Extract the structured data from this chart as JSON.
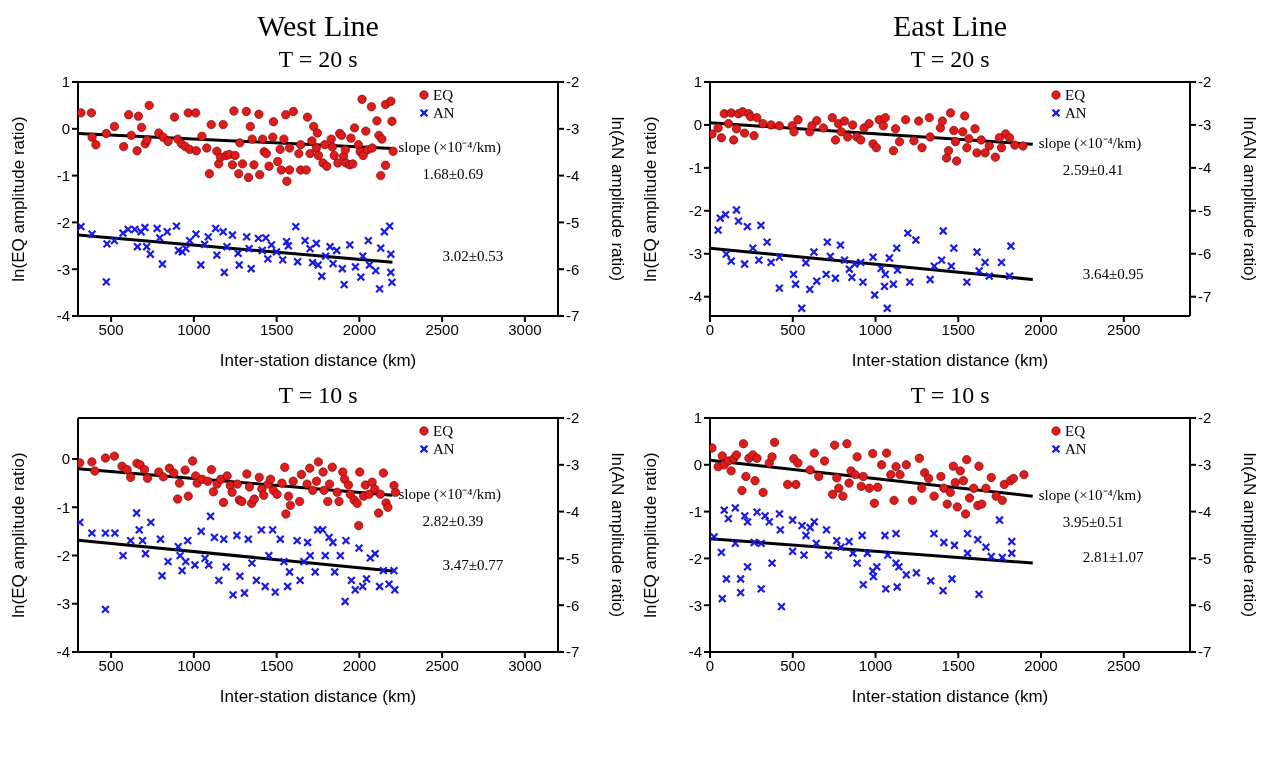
{
  "chart_data": [
    {
      "type": "scatter",
      "title": "West Line",
      "subtitle": "T = 20 s",
      "xlabel": "Inter-station distance (km)",
      "ylabel": "ln(EQ amplitude ratio)",
      "y2label": "ln(AN amplitude ratio)",
      "xlim": [
        300,
        3200
      ],
      "xticks": [
        500,
        1000,
        1500,
        2000,
        2500,
        3000
      ],
      "ylim": [
        -4,
        1
      ],
      "yticks": [
        -4,
        -3,
        -2,
        -1,
        0,
        1
      ],
      "y2lim": [
        -7,
        -2
      ],
      "y2ticks": [
        -7,
        -6,
        -5,
        -4,
        -3,
        -2
      ],
      "legend": "top right",
      "grid": false,
      "annotations": [
        "slope (×10⁻⁴/km)",
        "1.68±0.69",
        "3.02±0.53"
      ],
      "series": [
        {
          "name": "EQ",
          "color": "#e01b1b",
          "marker": "circle",
          "x": [
            318,
            381,
            385,
            408,
            471,
            520,
            576,
            606,
            622,
            657,
            665,
            684,
            706,
            717,
            730,
            788,
            815,
            844,
            883,
            903,
            925,
            948,
            966,
            975,
            1011,
            1015,
            1049,
            1078,
            1094,
            1105,
            1139,
            1150,
            1161,
            1177,
            1195,
            1214,
            1233,
            1242,
            1249,
            1271,
            1278,
            1294,
            1317,
            1330,
            1341,
            1352,
            1363,
            1393,
            1398,
            1416,
            1425,
            1438,
            1454,
            1477,
            1481,
            1506,
            1521,
            1528,
            1544,
            1555,
            1562,
            1578,
            1578,
            1601,
            1634,
            1645,
            1645,
            1679,
            1686,
            1702,
            1713,
            1724,
            1740,
            1746,
            1753,
            1780,
            1791,
            1803,
            1830,
            1837,
            1848,
            1870,
            1881,
            1892,
            1904,
            1915,
            1919,
            1942,
            1949,
            1960,
            1971,
            1994,
            2005,
            2016,
            2023,
            2039,
            2050,
            2073,
            2077,
            2106,
            2118,
            2129,
            2136,
            2158,
            2158,
            2190,
            2197,
            2204
          ],
          "values": [
            0.34,
            0.34,
            -0.18,
            -0.34,
            -0.1,
            0.05,
            -0.38,
            0.3,
            -0.14,
            -0.47,
            0.27,
            0.03,
            -0.32,
            -0.24,
            0.5,
            -0.09,
            -0.18,
            -0.27,
            0.25,
            -0.22,
            -0.32,
            -0.38,
            0.34,
            -0.44,
            0.34,
            -0.47,
            -0.16,
            -0.41,
            -0.96,
            0.09,
            -0.48,
            -0.75,
            -0.61,
            0.09,
            -0.57,
            -0.55,
            -0.77,
            0.38,
            -0.57,
            -0.96,
            -0.3,
            -0.75,
            0.37,
            -1.04,
            0.05,
            -0.22,
            -0.77,
            0.31,
            -0.98,
            -0.22,
            -0.49,
            -0.53,
            -0.8,
            -0.18,
            0.15,
            -0.7,
            -0.44,
            -0.88,
            -0.22,
            0.3,
            -1.12,
            -0.88,
            -0.41,
            0.37,
            -0.53,
            -0.34,
            -0.88,
            -0.88,
            0.25,
            -0.53,
            -0.26,
            0.05,
            -0.41,
            -0.09,
            -0.57,
            -0.73,
            -0.34,
            -0.8,
            -0.22,
            -0.39,
            -0.57,
            -0.73,
            -0.1,
            -0.14,
            -0.59,
            -0.45,
            -0.73,
            -0.77,
            -0.2,
            -0.75,
            0.02,
            -0.34,
            -0.49,
            0.63,
            -0.57,
            -0.05,
            -0.45,
            0.47,
            -0.41,
            0.17,
            -0.14,
            -1.0,
            -0.22,
            -0.78,
            0.52,
            0.59,
            0.16,
            -0.48
          ]
        },
        {
          "name": "AN",
          "color": "#1a1ae6",
          "marker": "cross",
          "axis": "y2",
          "x": [
            318,
            385,
            471,
            475,
            520,
            572,
            603,
            643,
            659,
            681,
            704,
            715,
            737,
            778,
            794,
            810,
            839,
            895,
            907,
            930,
            952,
            975,
            1013,
            1042,
            1065,
            1087,
            1132,
            1139,
            1177,
            1184,
            1200,
            1233,
            1267,
            1274,
            1319,
            1334,
            1346,
            1390,
            1413,
            1435,
            1447,
            1469,
            1499,
            1537,
            1560,
            1571,
            1616,
            1627,
            1672,
            1702,
            1717,
            1740,
            1751,
            1773,
            1796,
            1823,
            1841,
            1863,
            1897,
            1908,
            1942,
            1976,
            2009,
            2021,
            2054,
            2061,
            2099,
            2122,
            2129,
            2151,
            2183,
            2190,
            2190,
            2197
          ],
          "values": [
            -5.09,
            -5.25,
            -6.27,
            -5.46,
            -5.39,
            -5.23,
            -5.15,
            -5.15,
            -5.52,
            -5.2,
            -5.11,
            -5.52,
            -5.68,
            -5.13,
            -5.33,
            -5.89,
            -5.2,
            -5.08,
            -5.6,
            -5.63,
            -5.56,
            -5.39,
            -5.25,
            -5.91,
            -5.47,
            -5.31,
            -5.13,
            -5.7,
            -5.2,
            -6.07,
            -5.52,
            -5.27,
            -5.66,
            -5.91,
            -5.31,
            -5.56,
            -5.99,
            -5.34,
            -5.6,
            -5.33,
            -5.78,
            -5.48,
            -5.63,
            -5.8,
            -5.41,
            -5.5,
            -5.09,
            -5.84,
            -5.39,
            -5.56,
            -5.86,
            -5.45,
            -5.91,
            -6.15,
            -5.72,
            -5.52,
            -5.88,
            -5.6,
            -5.99,
            -6.33,
            -5.48,
            -5.95,
            -6.17,
            -5.72,
            -5.39,
            -5.91,
            -6.03,
            -6.42,
            -5.55,
            -5.2,
            -5.08,
            -5.68,
            -6.07,
            -6.28
          ]
        },
        {
          "type": "line",
          "color": "#000000",
          "x": [
            300,
            2200
          ],
          "values": [
            -0.1,
            -0.42
          ]
        },
        {
          "type": "line",
          "color": "#000000",
          "axis": "y2",
          "x": [
            300,
            2200
          ],
          "values": [
            -5.27,
            -5.85
          ]
        }
      ]
    },
    {
      "type": "scatter",
      "title": "East Line",
      "subtitle": "T = 20 s",
      "xlabel": "Inter-station distance (km)",
      "ylabel": "ln(EQ amplitude ratio)",
      "y2label": "ln(AN amplitude ratio)",
      "xlim": [
        0,
        2900
      ],
      "xticks": [
        0,
        500,
        1000,
        1500,
        2000,
        2500
      ],
      "ylim": [
        -4.45,
        1
      ],
      "yticks": [
        -4,
        -3,
        -2,
        -1,
        0,
        1
      ],
      "y2lim": [
        -7.45,
        -2
      ],
      "y2ticks": [
        -7,
        -6,
        -5,
        -4,
        -3,
        -2
      ],
      "legend": "top right",
      "grid": false,
      "annotations": [
        "slope (×10⁻⁴/km)",
        "2.59±0.41",
        "3.64±0.95"
      ],
      "series": [
        {
          "name": "EQ",
          "color": "#e01b1b",
          "marker": "circle",
          "x": [
            12,
            49,
            69,
            86,
            111,
            128,
            143,
            160,
            172,
            197,
            209,
            234,
            246,
            266,
            283,
            320,
            369,
            419,
            497,
            507,
            532,
            603,
            616,
            645,
            685,
            739,
            758,
            776,
            793,
            813,
            832,
            862,
            887,
            911,
            931,
            961,
            985,
            1005,
            1022,
            1047,
            1059,
            1108,
            1121,
            1145,
            1182,
            1232,
            1261,
            1281,
            1325,
            1330,
            1392,
            1404,
            1429,
            1441,
            1453,
            1473,
            1483,
            1490,
            1527,
            1539,
            1552,
            1564,
            1601,
            1613,
            1638,
            1662,
            1687,
            1724,
            1748,
            1761,
            1786,
            1810,
            1842,
            1891
          ],
          "values": [
            -0.21,
            -0.07,
            -0.3,
            0.26,
            0.03,
            0.28,
            -0.35,
            -0.09,
            0.26,
            0.31,
            -0.19,
            0.26,
            0.19,
            -0.25,
            0.17,
            0.03,
            0,
            -0.02,
            -0.02,
            -0.16,
            0.12,
            -0.16,
            -0.02,
            0.1,
            -0.07,
            0.17,
            -0.35,
            0.03,
            -0.16,
            0.09,
            -0.28,
            0,
            -0.28,
            -0.35,
            -0.07,
            0.03,
            -0.44,
            -0.53,
            0.12,
            -0.02,
            0.17,
            -0.6,
            -0.09,
            -0.39,
            0.12,
            -0.37,
            0.09,
            -0.53,
            0.17,
            -0.28,
            -0.07,
            0.09,
            -0.77,
            -0.6,
            0.28,
            -0.13,
            -0.39,
            -0.84,
            -0.16,
            0.21,
            -0.53,
            -0.32,
            -0.09,
            -0.65,
            -0.35,
            -0.65,
            -0.49,
            -0.75,
            -0.3,
            -0.53,
            -0.21,
            -0.3,
            -0.47,
            -0.49
          ]
        },
        {
          "name": "AN",
          "color": "#1a1ae6",
          "marker": "cross",
          "axis": "y2",
          "x": [
            49,
            62,
            94,
            98,
            128,
            160,
            172,
            209,
            226,
            259,
            295,
            308,
            345,
            369,
            419,
            419,
            505,
            517,
            554,
            579,
            603,
            628,
            645,
            702,
            709,
            727,
            758,
            788,
            813,
            842,
            857,
            874,
            911,
            924,
            985,
            995,
            1034,
            1054,
            1059,
            1071,
            1084,
            1108,
            1128,
            1133,
            1195,
            1207,
            1244,
            1330,
            1355,
            1399,
            1409,
            1458,
            1473,
            1552,
            1613,
            1626,
            1662,
            1687,
            1761,
            1810,
            1818
          ],
          "values": [
            -5.45,
            -5.17,
            -5.09,
            -6.01,
            -6.17,
            -4.98,
            -5.24,
            -6.24,
            -5.37,
            -5.87,
            -6.15,
            -5.34,
            -5.73,
            -6.2,
            -6.08,
            -6.8,
            -6.48,
            -6.71,
            -7.27,
            -6.21,
            -6.83,
            -5.96,
            -6.64,
            -6.48,
            -5.73,
            -6.06,
            -6.57,
            -5.8,
            -6.15,
            -6.36,
            -6.55,
            -6.24,
            -6.2,
            -6.66,
            -6.08,
            -6.96,
            -6.34,
            -6.76,
            -6.48,
            -7.27,
            -6.1,
            -6.71,
            -5.87,
            -6.38,
            -5.52,
            -6.66,
            -5.68,
            -6.6,
            -6.29,
            -6.15,
            -5.47,
            -6.29,
            -5.87,
            -6.66,
            -5.96,
            -6.4,
            -6.2,
            -6.52,
            -6.2,
            -6.52,
            -5.82
          ]
        },
        {
          "type": "line",
          "color": "#000000",
          "x": [
            0,
            1950
          ],
          "values": [
            0.05,
            -0.45
          ]
        },
        {
          "type": "line",
          "color": "#000000",
          "axis": "y2",
          "x": [
            0,
            1950
          ],
          "values": [
            -5.87,
            -6.6
          ]
        }
      ]
    },
    {
      "type": "scatter",
      "title": "T = 10 s",
      "xlabel": "Inter-station distance (km)",
      "ylabel": "ln(EQ amplitude ratio)",
      "y2label": "ln(AN amplitude ratio)",
      "xlim": [
        300,
        3200
      ],
      "xticks": [
        500,
        1000,
        1500,
        2000,
        2500,
        3000
      ],
      "ylim": [
        -4,
        0.85
      ],
      "yticks": [
        -4,
        -3,
        -2,
        -1,
        0
      ],
      "y2lim": [
        -7,
        -2
      ],
      "y2ticks": [
        -7,
        -6,
        -5,
        -4,
        -3,
        -2
      ],
      "legend": "top right",
      "grid": false,
      "annotations": [
        "slope (×10⁻⁴/km)",
        "2.82±0.39",
        "3.47±0.77"
      ],
      "series": [
        {
          "name": "EQ",
          "color": "#e01b1b",
          "marker": "circle",
          "x": [
            311,
            384,
            402,
            466,
            520,
            566,
            597,
            618,
            656,
            675,
            702,
            720,
            788,
            815,
            852,
            879,
            902,
            913,
            947,
            966,
            993,
            1011,
            1020,
            1050,
            1084,
            1106,
            1118,
            1140,
            1163,
            1179,
            1201,
            1220,
            1231,
            1263,
            1274,
            1290,
            1320,
            1336,
            1349,
            1365,
            1395,
            1411,
            1422,
            1449,
            1463,
            1480,
            1502,
            1532,
            1549,
            1556,
            1572,
            1583,
            1600,
            1639,
            1650,
            1684,
            1700,
            1718,
            1741,
            1752,
            1781,
            1786,
            1809,
            1820,
            1836,
            1866,
            1877,
            1900,
            1911,
            1934,
            1945,
            1968,
            1987,
            1996,
            2002,
            2025,
            2036,
            2059,
            2077,
            2093,
            2116,
            2127,
            2145,
            2161,
            2172,
            2209,
            2218
          ],
          "values": [
            -0.08,
            -0.06,
            -0.25,
            0.02,
            0.06,
            -0.15,
            -0.22,
            -0.38,
            -0.09,
            -0.12,
            -0.22,
            -0.4,
            -0.27,
            -0.37,
            -0.19,
            -0.29,
            -0.83,
            -0.5,
            -0.23,
            -0.77,
            -0.04,
            -0.35,
            -0.5,
            -0.42,
            -0.46,
            -0.22,
            -0.68,
            -0.52,
            -0.42,
            -0.9,
            -0.35,
            -0.55,
            -0.69,
            -0.52,
            -0.85,
            -0.88,
            -0.31,
            -0.58,
            -0.92,
            -0.83,
            -0.38,
            -0.62,
            -0.75,
            -0.52,
            -0.42,
            -0.65,
            -0.73,
            -0.5,
            -0.17,
            -1.14,
            -0.77,
            -0.96,
            -0.46,
            -0.88,
            -0.32,
            -0.52,
            -0.19,
            -0.65,
            -0.46,
            -0.06,
            -0.27,
            -0.65,
            -0.88,
            -0.52,
            -0.17,
            -0.69,
            -0.88,
            -0.27,
            -0.42,
            -0.54,
            -0.73,
            -0.85,
            -0.92,
            -1.38,
            -0.27,
            -0.77,
            -0.54,
            -0.73,
            -0.48,
            -0.62,
            -1.12,
            -0.73,
            -0.29,
            -0.91,
            -1.0,
            -0.55,
            -0.69
          ]
        },
        {
          "name": "AN",
          "color": "#1a1ae6",
          "marker": "cross",
          "axis": "y2",
          "x": [
            311,
            384,
            466,
            466,
            523,
            572,
            618,
            654,
            670,
            690,
            708,
            740,
            798,
            808,
            844,
            906,
            917,
            929,
            951,
            963,
            1006,
            1044,
            1067,
            1090,
            1101,
            1124,
            1151,
            1181,
            1196,
            1237,
            1260,
            1278,
            1306,
            1329,
            1351,
            1378,
            1408,
            1431,
            1453,
            1476,
            1492,
            1522,
            1544,
            1567,
            1578,
            1624,
            1642,
            1665,
            1687,
            1703,
            1733,
            1748,
            1778,
            1794,
            1817,
            1840,
            1851,
            1885,
            1914,
            1919,
            1952,
            1975,
            1998,
            2020,
            2043,
            2066,
            2095,
            2122,
            2145,
            2179,
            2209,
            2214
          ],
          "values": [
            -4.23,
            -4.46,
            -4.46,
            -6.09,
            -4.46,
            -4.94,
            -4.62,
            -4.03,
            -4.39,
            -4.62,
            -4.9,
            -4.23,
            -4.59,
            -5.37,
            -5.07,
            -4.75,
            -4.94,
            -5.26,
            -5.07,
            -4.62,
            -5.14,
            -4.42,
            -5.0,
            -5.14,
            -4.1,
            -4.55,
            -5.47,
            -4.59,
            -5.18,
            -5.78,
            -4.51,
            -5.38,
            -5.74,
            -4.59,
            -5.1,
            -5.47,
            -4.39,
            -5.6,
            -4.94,
            -4.39,
            -5.72,
            -4.59,
            -5.07,
            -5.6,
            -5.29,
            -4.62,
            -5.47,
            -5.07,
            -4.66,
            -4.94,
            -5.29,
            -4.39,
            -4.39,
            -4.94,
            -4.55,
            -4.66,
            -5.29,
            -4.94,
            -5.92,
            -4.62,
            -5.47,
            -5.67,
            -4.78,
            -5.6,
            -5.44,
            -4.99,
            -4.9,
            -5.6,
            -5.26,
            -5.55,
            -5.26,
            -5.67
          ]
        },
        {
          "type": "line",
          "color": "#000000",
          "x": [
            300,
            2200
          ],
          "values": [
            -0.2,
            -0.75
          ]
        },
        {
          "type": "line",
          "color": "#000000",
          "axis": "y2",
          "x": [
            300,
            2200
          ],
          "values": [
            -4.61,
            -5.27
          ]
        }
      ]
    },
    {
      "type": "scatter",
      "title": "T = 10 s",
      "xlabel": "Inter-station distance (km)",
      "ylabel": "ln(EQ amplitude ratio)",
      "y2label": "ln(AN amplitude ratio)",
      "xlim": [
        0,
        2900
      ],
      "xticks": [
        0,
        500,
        1000,
        1500,
        2000,
        2500
      ],
      "ylim": [
        -4,
        1
      ],
      "yticks": [
        -4,
        -3,
        -2,
        -1,
        0,
        1
      ],
      "y2lim": [
        -7,
        -2
      ],
      "y2ticks": [
        -7,
        -6,
        -5,
        -4,
        -3,
        -2
      ],
      "legend": "top right",
      "grid": false,
      "annotations": [
        "slope (×10⁻⁴/km)",
        "3.95±0.51",
        "2.81±1.07"
      ],
      "series": [
        {
          "name": "EQ",
          "color": "#e01b1b",
          "marker": "circle",
          "x": [
            12,
            49,
            74,
            86,
            111,
            128,
            143,
            160,
            193,
            202,
            217,
            235,
            259,
            272,
            284,
            321,
            358,
            375,
            390,
            469,
            506,
            519,
            531,
            605,
            630,
            657,
            692,
            741,
            753,
            766,
            778,
            803,
            827,
            840,
            852,
            877,
            889,
            914,
            926,
            963,
            983,
            993,
            1013,
            1037,
            1067,
            1092,
            1112,
            1124,
            1148,
            1186,
            1223,
            1265,
            1279,
            1297,
            1321,
            1354,
            1395,
            1413,
            1433,
            1452,
            1470,
            1482,
            1494,
            1512,
            1531,
            1544,
            1551,
            1568,
            1593,
            1618,
            1625,
            1642,
            1667,
            1699,
            1729,
            1766,
            1778,
            1815,
            1833,
            1897
          ],
          "values": [
            0.36,
            -0.04,
            0.19,
            0,
            0.08,
            -0.13,
            0.13,
            0.21,
            -0.55,
            0.45,
            -0.25,
            0.14,
            0.21,
            -0.34,
            0.14,
            -0.59,
            0.04,
            0.17,
            0.48,
            -0.42,
            0.13,
            -0.42,
            0.04,
            -0.11,
            0.25,
            -0.25,
            0.08,
            -0.63,
            0.42,
            -0.28,
            -0.5,
            -0.67,
            0.45,
            -0.39,
            -0.13,
            -0.21,
            0.17,
            -0.46,
            -0.25,
            -0.5,
            0.24,
            -0.82,
            -0.48,
            0,
            0.25,
            -0.21,
            -0.76,
            -0.04,
            -0.21,
            0,
            -0.76,
            0.14,
            -0.5,
            -0.17,
            -0.29,
            -0.67,
            -0.25,
            -0.5,
            -0.84,
            -0.59,
            -0.03,
            -0.38,
            -0.9,
            -0.13,
            -0.34,
            -1.05,
            0.11,
            -0.71,
            -0.5,
            -0.87,
            -0.03,
            -0.84,
            -0.5,
            -0.27,
            -0.67,
            -0.76,
            -0.42,
            -0.34,
            -0.29,
            -0.21
          ]
        },
        {
          "name": "AN",
          "color": "#1a1ae6",
          "marker": "cross",
          "axis": "y2",
          "x": [
            25,
            69,
            74,
            86,
            99,
            111,
            153,
            153,
            185,
            185,
            210,
            227,
            227,
            267,
            284,
            309,
            309,
            333,
            358,
            375,
            420,
            425,
            432,
            499,
            499,
            556,
            568,
            580,
            605,
            630,
            642,
            704,
            716,
            766,
            791,
            840,
            864,
            889,
            919,
            926,
            951,
            983,
            988,
            1008,
            1057,
            1062,
            1074,
            1124,
            1124,
            1131,
            1141,
            1186,
            1247,
            1334,
            1353,
            1408,
            1413,
            1462,
            1477,
            1556,
            1556,
            1618,
            1625,
            1667,
            1699,
            1749,
            1766,
            1823,
            1823
          ],
          "values": [
            -4.54,
            -4.87,
            -5.86,
            -3.97,
            -5.44,
            -4.15,
            -3.92,
            -4.68,
            -5.44,
            -5.73,
            -4.09,
            -4.22,
            -5.18,
            -4.66,
            -4.01,
            -4.68,
            -5.65,
            -4.09,
            -4.22,
            -5.1,
            -4.05,
            -4.39,
            -6.03,
            -4.18,
            -4.85,
            -4.3,
            -4.93,
            -4.51,
            -4.34,
            -4.22,
            -4.68,
            -4.39,
            -4.93,
            -4.62,
            -4.76,
            -4.64,
            -4.89,
            -5.1,
            -4.51,
            -5.56,
            -4.89,
            -5.27,
            -5.39,
            -5.18,
            -4.51,
            -5.65,
            -4.93,
            -4.47,
            -5.1,
            -5.61,
            -5.18,
            -5.35,
            -5.31,
            -5.48,
            -4.47,
            -5.69,
            -4.66,
            -5.44,
            -4.72,
            -4.47,
            -4.89,
            -4.6,
            -5.77,
            -4.76,
            -4.96,
            -4.18,
            -4.98,
            -4.64,
            -4.89
          ]
        },
        {
          "type": "line",
          "color": "#000000",
          "x": [
            0,
            1950
          ],
          "values": [
            0.1,
            -0.67
          ]
        },
        {
          "type": "line",
          "color": "#000000",
          "axis": "y2",
          "x": [
            0,
            1950
          ],
          "values": [
            -4.58,
            -5.1
          ]
        }
      ]
    }
  ]
}
